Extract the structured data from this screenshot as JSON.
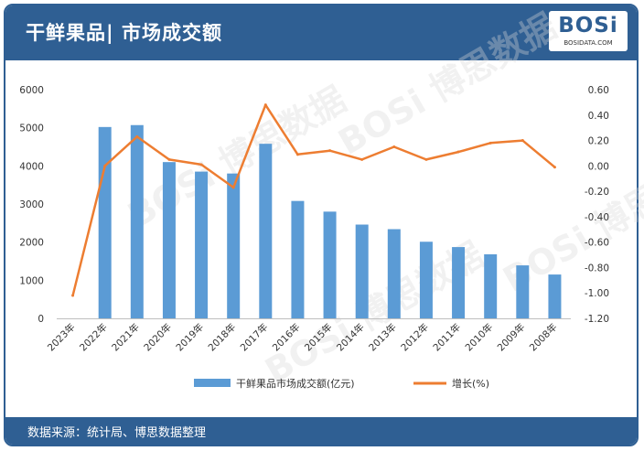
{
  "title": "干鲜果品| 市场成交额",
  "logo": {
    "main": "BOSi",
    "sub": "BOSIDATA.COM"
  },
  "source": "数据来源：统计局、博思数据整理",
  "watermark": "BOSi 博思数据",
  "colors": {
    "header": "#2f5f93",
    "bar": "#5b9bd5",
    "line": "#ed7d31"
  },
  "chart_data": {
    "type": "bar",
    "categories": [
      "2023年",
      "2022年",
      "2021年",
      "2020年",
      "2019年",
      "2018年",
      "2017年",
      "2016年",
      "2015年",
      "2014年",
      "2013年",
      "2012年",
      "2011年",
      "2010年",
      "2009年",
      "2008年"
    ],
    "series": [
      {
        "name": "干鲜果品市场成交额(亿元)",
        "type": "bar",
        "axis": "left",
        "values": [
          0,
          5020,
          5070,
          4100,
          3850,
          3800,
          4580,
          3080,
          2800,
          2460,
          2340,
          2010,
          1870,
          1680,
          1390,
          1150
        ]
      },
      {
        "name": "增长(%)",
        "type": "line",
        "axis": "right",
        "values": [
          -1.02,
          0.0,
          0.23,
          0.05,
          0.01,
          -0.17,
          0.48,
          0.09,
          0.12,
          0.05,
          0.15,
          0.05,
          0.11,
          0.18,
          0.2,
          -0.01
        ]
      }
    ],
    "y_left": {
      "min": 0,
      "max": 6000,
      "step": 1000,
      "ticks": [
        "0",
        "1000",
        "2000",
        "3000",
        "4000",
        "5000",
        "6000"
      ]
    },
    "y_right": {
      "min": -1.2,
      "max": 0.6,
      "step": 0.2,
      "ticks": [
        "-1.20",
        "-1.00",
        "-0.80",
        "-0.60",
        "-0.40",
        "-0.20",
        "0.00",
        "0.20",
        "0.40",
        "0.60"
      ]
    },
    "grid": false,
    "legend": "bottom"
  }
}
